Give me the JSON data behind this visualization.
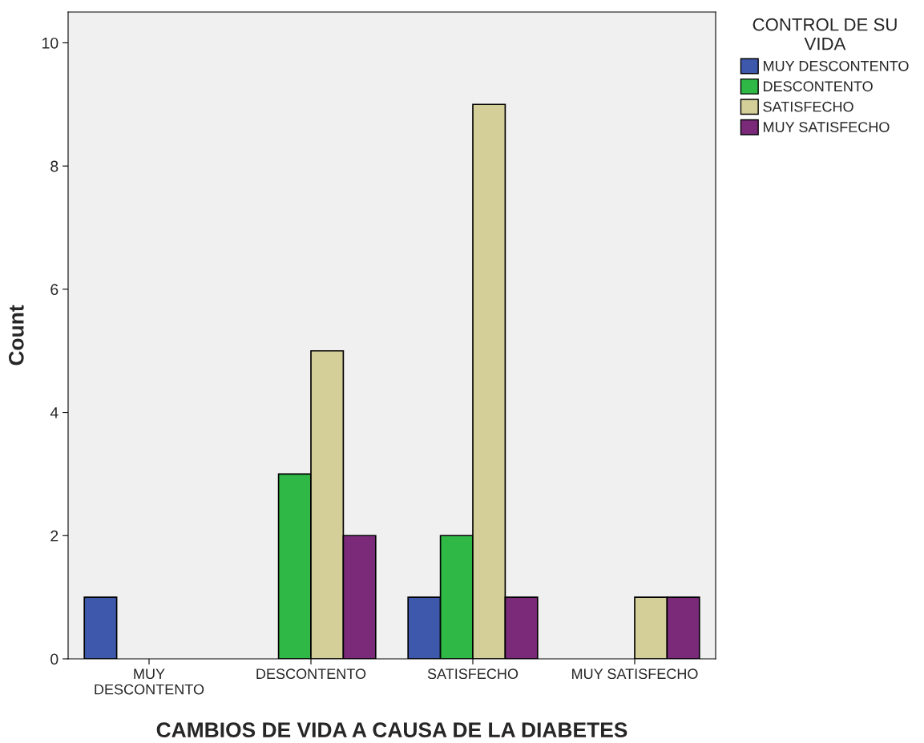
{
  "chart_data": {
    "type": "bar",
    "xlabel": "CAMBIOS DE VIDA A CAUSA DE LA DIABETES",
    "ylabel": "Count",
    "legend_title": "CONTROL DE SU\nVIDA",
    "categories": [
      "MUY\nDESCONTENTO",
      "DESCONTENTO",
      "SATISFECHO",
      "MUY SATISFECHO"
    ],
    "series": [
      {
        "name": "MUY DESCONTENTO",
        "color": "#3e58ac",
        "values": [
          1,
          null,
          1,
          null
        ]
      },
      {
        "name": "DESCONTENTO",
        "color": "#2fb846",
        "values": [
          null,
          3,
          2,
          null
        ]
      },
      {
        "name": "SATISFECHO",
        "color": "#d4cf98",
        "values": [
          null,
          5,
          9,
          1
        ]
      },
      {
        "name": "MUY SATISFECHO",
        "color": "#7b2a7a",
        "values": [
          null,
          2,
          1,
          1
        ]
      }
    ],
    "ylim": [
      0,
      10.5
    ],
    "yticks": [
      0,
      2,
      4,
      6,
      8,
      10
    ],
    "grid": false,
    "legend": "top right"
  }
}
